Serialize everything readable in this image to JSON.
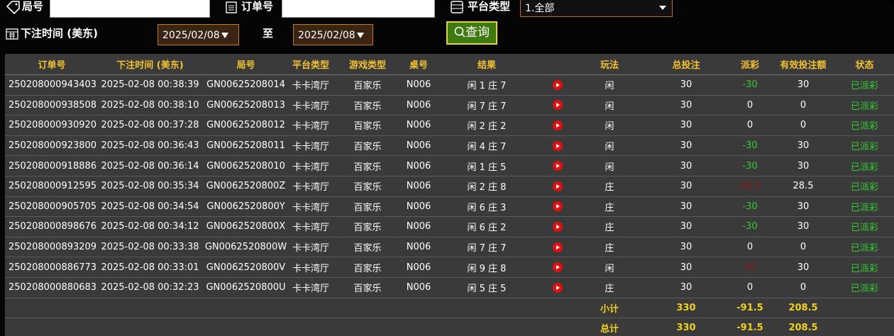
{
  "filters": {
    "round_label": "局号",
    "order_label": "订单号",
    "platform_label": "平台类型",
    "platform_value": "1.全部",
    "time_label": "下注时间 (美东)",
    "date_from": "2025/02/08",
    "to_label": "至",
    "date_to": "2025/02/08",
    "query_button": "查询"
  },
  "table": {
    "headers": [
      "订单号",
      "下注时间 (美东)",
      "局号",
      "平台类型",
      "游戏类型",
      "桌号",
      "结果",
      "玩法",
      "总投注",
      "派彩",
      "有效投注额",
      "状态"
    ],
    "rows": [
      {
        "order": "250208000943403",
        "time": "2025-02-08 00:38:39",
        "round": "GN00625208014",
        "platform": "卡卡湾厅",
        "game": "百家乐",
        "table": "N006",
        "result": "闲 1 庄 7",
        "play": "闲",
        "bet": "30",
        "payout": "-30",
        "payout_color": "#33cc33",
        "valid": "30",
        "status": "已派彩"
      },
      {
        "order": "250208000938508",
        "time": "2025-02-08 00:38:10",
        "round": "GN00625208013",
        "platform": "卡卡湾厅",
        "game": "百家乐",
        "table": "N006",
        "result": "闲 7 庄 7",
        "play": "闲",
        "bet": "30",
        "payout": "0",
        "payout_color": "#ffffff",
        "valid": "0",
        "status": "已派彩"
      },
      {
        "order": "250208000930920",
        "time": "2025-02-08 00:37:28",
        "round": "GN00625208012",
        "platform": "卡卡湾厅",
        "game": "百家乐",
        "table": "N006",
        "result": "闲 2 庄 2",
        "play": "闲",
        "bet": "30",
        "payout": "0",
        "payout_color": "#ffffff",
        "valid": "0",
        "status": "已派彩"
      },
      {
        "order": "250208000923800",
        "time": "2025-02-08 00:36:43",
        "round": "GN00625208011",
        "platform": "卡卡湾厅",
        "game": "百家乐",
        "table": "N006",
        "result": "闲 4 庄 7",
        "play": "闲",
        "bet": "30",
        "payout": "-30",
        "payout_color": "#33cc33",
        "valid": "30",
        "status": "已派彩"
      },
      {
        "order": "250208000918886",
        "time": "2025-02-08 00:36:14",
        "round": "GN00625208010",
        "platform": "卡卡湾厅",
        "game": "百家乐",
        "table": "N006",
        "result": "闲 1 庄 5",
        "play": "闲",
        "bet": "30",
        "payout": "-30",
        "payout_color": "#33cc33",
        "valid": "30",
        "status": "已派彩"
      },
      {
        "order": "250208000912595",
        "time": "2025-02-08 00:35:34",
        "round": "GN0062520800Z",
        "platform": "卡卡湾厅",
        "game": "百家乐",
        "table": "N006",
        "result": "闲 2 庄 8",
        "play": "庄",
        "bet": "30",
        "payout": "28.5",
        "payout_color": "#8b1a1a",
        "valid": "28.5",
        "status": "已派彩"
      },
      {
        "order": "250208000905705",
        "time": "2025-02-08 00:34:54",
        "round": "GN0062520800Y",
        "platform": "卡卡湾厅",
        "game": "百家乐",
        "table": "N006",
        "result": "闲 6 庄 3",
        "play": "庄",
        "bet": "30",
        "payout": "-30",
        "payout_color": "#33cc33",
        "valid": "30",
        "status": "已派彩"
      },
      {
        "order": "250208000898676",
        "time": "2025-02-08 00:34:12",
        "round": "GN0062520800X",
        "platform": "卡卡湾厅",
        "game": "百家乐",
        "table": "N006",
        "result": "闲 6 庄 2",
        "play": "庄",
        "bet": "30",
        "payout": "-30",
        "payout_color": "#33cc33",
        "valid": "30",
        "status": "已派彩"
      },
      {
        "order": "250208000893209",
        "time": "2025-02-08 00:33:38",
        "round": "GN0062520800W",
        "platform": "卡卡湾厅",
        "game": "百家乐",
        "table": "N006",
        "result": "闲 7 庄 7",
        "play": "庄",
        "bet": "30",
        "payout": "0",
        "payout_color": "#ffffff",
        "valid": "0",
        "status": "已派彩"
      },
      {
        "order": "250208000886773",
        "time": "2025-02-08 00:33:01",
        "round": "GN0062520800V",
        "platform": "卡卡湾厅",
        "game": "百家乐",
        "table": "N006",
        "result": "闲 9 庄 8",
        "play": "闲",
        "bet": "30",
        "payout": "30",
        "payout_color": "#8b1a1a",
        "valid": "30",
        "status": "已派彩"
      },
      {
        "order": "250208000880683",
        "time": "2025-02-08 00:32:23",
        "round": "GN0062520800U",
        "platform": "卡卡湾厅",
        "game": "百家乐",
        "table": "N006",
        "result": "闲 5 庄 5",
        "play": "庄",
        "bet": "30",
        "payout": "0",
        "payout_color": "#ffffff",
        "valid": "0",
        "status": "已派彩"
      }
    ],
    "subtotal": {
      "label": "小计",
      "bet": "330",
      "payout": "-91.5",
      "valid": "208.5"
    },
    "total": {
      "label": "总计",
      "bet": "330",
      "payout": "-91.5",
      "valid": "208.5"
    }
  }
}
